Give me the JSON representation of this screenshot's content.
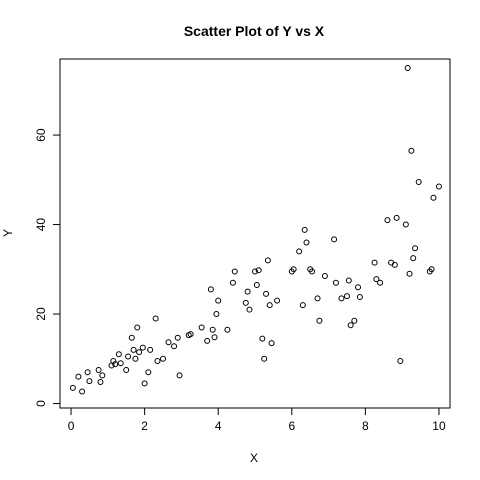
{
  "chart_data": {
    "type": "scatter",
    "title": "Scatter Plot of Y vs X",
    "xlabel": "X",
    "ylabel": "Y",
    "xlim": [
      -0.3,
      10.3
    ],
    "ylim": [
      -1,
      77
    ],
    "xticks": [
      0,
      2,
      4,
      6,
      8,
      10
    ],
    "yticks": [
      0,
      20,
      40,
      60
    ],
    "grid": false,
    "legend": "none",
    "point_color": "#000000",
    "series": [
      {
        "marker": "open-circle",
        "x": [
          0.05,
          0.2,
          0.3,
          0.45,
          0.5,
          0.75,
          0.8,
          0.85,
          1.1,
          1.15,
          1.2,
          1.3,
          1.35,
          1.5,
          1.55,
          1.65,
          1.7,
          1.75,
          1.8,
          1.85,
          1.95,
          2.0,
          2.1,
          2.15,
          2.3,
          2.35,
          2.5,
          2.65,
          2.8,
          2.9,
          2.95,
          3.2,
          3.25,
          3.55,
          3.7,
          3.8,
          3.85,
          3.9,
          3.95,
          4.0,
          4.25,
          4.4,
          4.45,
          4.75,
          4.8,
          4.85,
          5.0,
          5.05,
          5.1,
          5.2,
          5.25,
          5.3,
          5.35,
          5.4,
          5.45,
          5.6,
          6.0,
          6.05,
          6.2,
          6.3,
          6.35,
          6.4,
          6.5,
          6.55,
          6.7,
          6.75,
          6.9,
          7.15,
          7.2,
          7.35,
          7.5,
          7.55,
          7.6,
          7.7,
          7.8,
          7.85,
          8.25,
          8.3,
          8.4,
          8.6,
          8.7,
          8.8,
          8.85,
          8.95,
          9.1,
          9.15,
          9.2,
          9.25,
          9.3,
          9.35,
          9.45,
          9.75,
          9.8,
          9.85,
          10.0
        ],
        "y": [
          3.5,
          6.0,
          2.7,
          7.0,
          5.0,
          7.5,
          4.8,
          6.3,
          8.5,
          9.5,
          8.8,
          11.0,
          9.0,
          7.5,
          10.5,
          14.7,
          12.0,
          10.0,
          17.0,
          11.5,
          12.5,
          4.5,
          7.0,
          12.0,
          19.0,
          9.5,
          10.0,
          13.7,
          12.8,
          14.7,
          6.3,
          15.3,
          15.5,
          17.0,
          14.0,
          25.5,
          16.5,
          14.8,
          20.0,
          23.0,
          16.5,
          27.0,
          29.5,
          22.5,
          25.0,
          21.0,
          29.5,
          26.5,
          29.8,
          14.5,
          10.0,
          24.5,
          32.0,
          22.0,
          13.5,
          23.0,
          29.5,
          30.0,
          34.0,
          22.0,
          38.8,
          36.0,
          30.0,
          29.5,
          23.5,
          18.5,
          28.5,
          36.7,
          27.0,
          23.5,
          24.0,
          27.5,
          17.5,
          18.5,
          26.0,
          23.8,
          31.5,
          27.8,
          27.0,
          41.0,
          31.5,
          31.0,
          41.5,
          9.5,
          40.0,
          75.0,
          29.0,
          56.5,
          32.5,
          34.7,
          49.5,
          29.5,
          30.0,
          46.0,
          48.5
        ]
      }
    ]
  }
}
